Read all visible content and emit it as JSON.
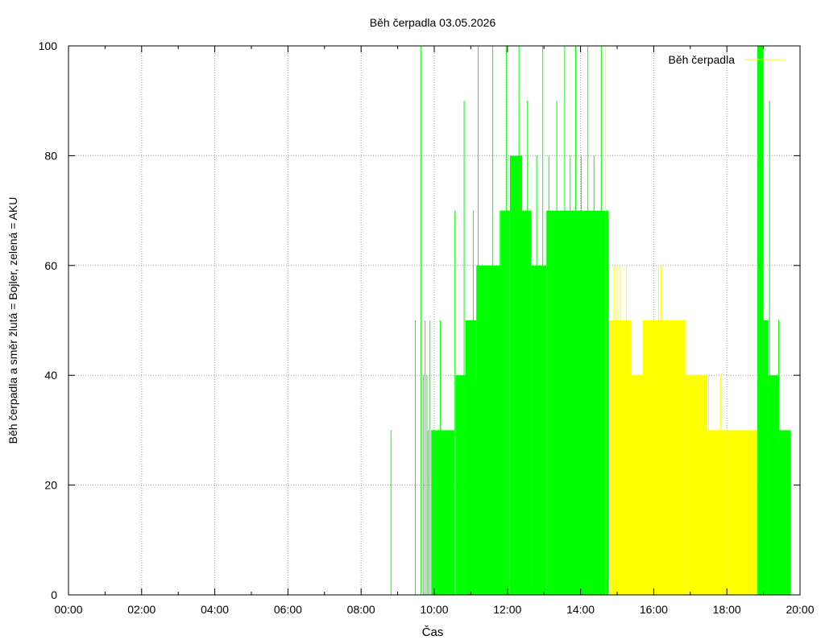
{
  "chart_data": {
    "type": "area",
    "title": "Běh čerpadla 03.05.2026",
    "xlabel": "Čas",
    "ylabel": "Běh čerpadla a směr žlutá = Bojler, zelená = AKU",
    "xlim_hours": [
      0,
      20
    ],
    "ylim": [
      0,
      100
    ],
    "x_ticks": [
      "00:00",
      "02:00",
      "04:00",
      "06:00",
      "08:00",
      "10:00",
      "12:00",
      "14:00",
      "16:00",
      "18:00",
      "20:00"
    ],
    "y_ticks": [
      0,
      20,
      40,
      60,
      80,
      100
    ],
    "grid": true,
    "legend": {
      "position": "top-right",
      "label": "Běh čerpadla"
    },
    "colors": {
      "legend_line": "#ffff00",
      "bojler": "#ffff00",
      "aku": "#00ff00",
      "grid": "#a0a0a0"
    },
    "series": [
      {
        "color": "#00ff00",
        "spikes": [
          {
            "t": "08:49",
            "v": 30
          },
          {
            "t": "09:29",
            "v": 50
          },
          {
            "t": "09:38",
            "v": 100
          },
          {
            "t": "09:42",
            "v": 40
          },
          {
            "t": "09:45",
            "v": 50
          },
          {
            "t": "09:48",
            "v": 40
          },
          {
            "t": "09:50",
            "v": 30
          },
          {
            "t": "09:53",
            "v": 50
          },
          {
            "t": "10:10",
            "v": 50
          },
          {
            "t": "10:34",
            "v": 70
          },
          {
            "t": "10:49",
            "v": 90
          },
          {
            "t": "11:04",
            "v": 70
          },
          {
            "t": "11:12",
            "v": 100
          },
          {
            "t": "11:36",
            "v": 100
          },
          {
            "t": "11:48",
            "v": 70
          },
          {
            "t": "11:58",
            "v": 100
          },
          {
            "t": "12:05",
            "v": 80
          },
          {
            "t": "12:19",
            "v": 100
          },
          {
            "t": "12:33",
            "v": 90
          },
          {
            "t": "12:48",
            "v": 80
          },
          {
            "t": "12:58",
            "v": 100
          },
          {
            "t": "13:08",
            "v": 80
          },
          {
            "t": "13:21",
            "v": 90
          },
          {
            "t": "13:34",
            "v": 100
          },
          {
            "t": "13:43",
            "v": 80
          },
          {
            "t": "13:52",
            "v": 100
          },
          {
            "t": "14:01",
            "v": 80
          },
          {
            "t": "14:12",
            "v": 100
          },
          {
            "t": "14:22",
            "v": 80
          },
          {
            "t": "14:34",
            "v": 100
          },
          {
            "t": "18:54",
            "v": 100
          },
          {
            "t": "18:59",
            "v": 90
          },
          {
            "t": "19:10",
            "v": 90
          },
          {
            "t": "19:25",
            "v": 50
          }
        ],
        "blocks": [
          {
            "from": "09:55",
            "to": "10:33",
            "v": 30
          },
          {
            "from": "10:35",
            "to": "10:51",
            "v": 40
          },
          {
            "from": "10:51",
            "to": "11:09",
            "v": 50
          },
          {
            "from": "11:09",
            "to": "11:49",
            "v": 60
          },
          {
            "from": "11:49",
            "to": "12:04",
            "v": 70
          },
          {
            "from": "12:04",
            "to": "12:24",
            "v": 80
          },
          {
            "from": "12:24",
            "to": "12:39",
            "v": 70
          },
          {
            "from": "12:39",
            "to": "13:04",
            "v": 60
          },
          {
            "from": "13:04",
            "to": "14:46",
            "v": 70
          },
          {
            "from": "18:50",
            "to": "19:00",
            "v": 100
          },
          {
            "from": "19:00",
            "to": "19:08",
            "v": 50
          },
          {
            "from": "19:08",
            "to": "19:24",
            "v": 40
          },
          {
            "from": "19:24",
            "to": "19:45",
            "v": 30
          }
        ]
      },
      {
        "color": "#ffff00",
        "spikes": [
          {
            "t": "14:41",
            "v": 100
          },
          {
            "t": "14:55",
            "v": 60
          },
          {
            "t": "15:00",
            "v": 60
          },
          {
            "t": "15:05",
            "v": 60
          },
          {
            "t": "15:15",
            "v": 60
          },
          {
            "t": "16:08",
            "v": 60
          },
          {
            "t": "16:12",
            "v": 60
          },
          {
            "t": "17:30",
            "v": 40
          },
          {
            "t": "17:50",
            "v": 40
          }
        ],
        "blocks": [
          {
            "from": "14:48",
            "to": "15:23",
            "v": 50
          },
          {
            "from": "15:23",
            "to": "15:42",
            "v": 40
          },
          {
            "from": "15:42",
            "to": "16:52",
            "v": 50
          },
          {
            "from": "16:52",
            "to": "17:28",
            "v": 40
          },
          {
            "from": "17:28",
            "to": "18:00",
            "v": 30
          },
          {
            "from": "18:00",
            "to": "18:50",
            "v": 30
          }
        ]
      }
    ]
  }
}
